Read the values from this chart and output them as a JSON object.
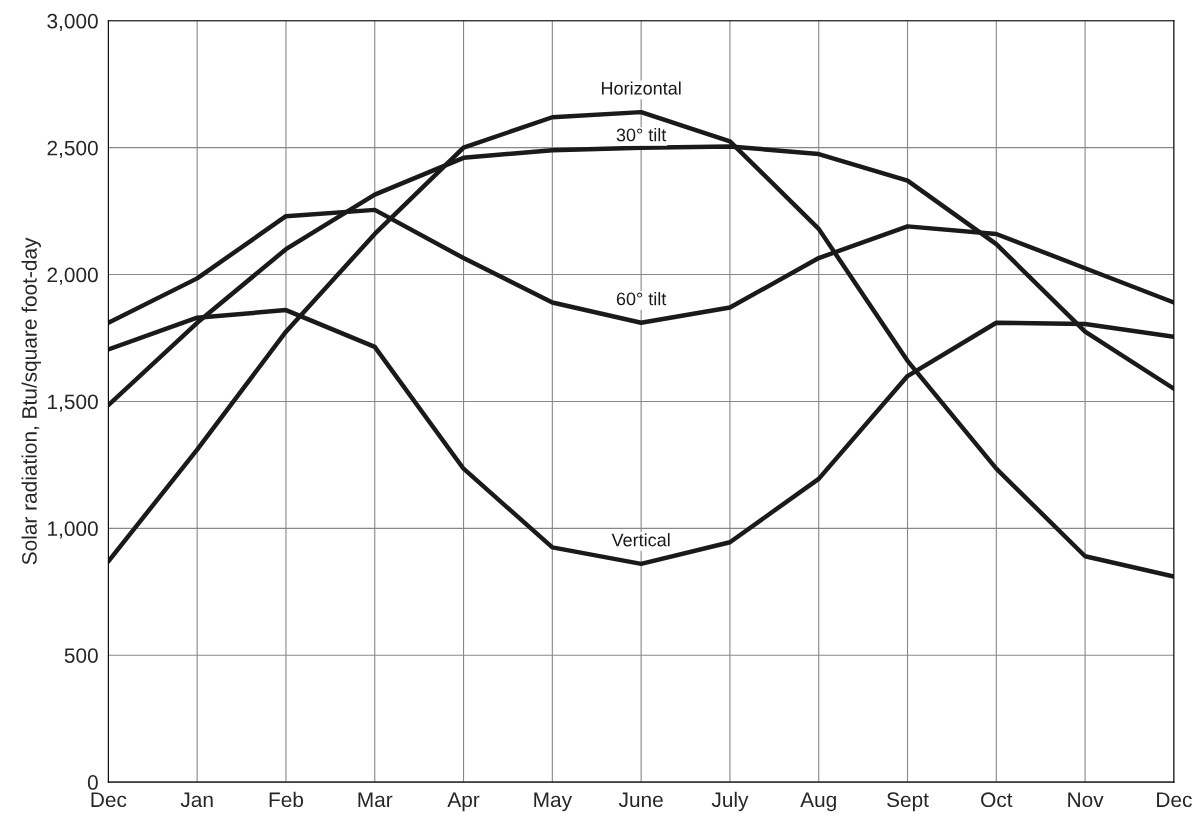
{
  "chart_data": {
    "type": "line",
    "ylabel": "Solar radiation, Btu/square foot-day",
    "categories": [
      "Dec",
      "Jan",
      "Feb",
      "Mar",
      "Apr",
      "May",
      "June",
      "July",
      "Aug",
      "Sept",
      "Oct",
      "Nov",
      "Dec"
    ],
    "series": [
      {
        "name": "Horizontal",
        "color": "#1a1a1a",
        "values": [
          870,
          1310,
          1775,
          2160,
          2500,
          2620,
          2640,
          2525,
          2180,
          1660,
          1235,
          890,
          810
        ]
      },
      {
        "name": "30° tilt",
        "color": "#1a1a1a",
        "values": [
          1485,
          1810,
          2100,
          2315,
          2460,
          2490,
          2500,
          2505,
          2475,
          2370,
          2120,
          1775,
          1550
        ]
      },
      {
        "name": "60° tilt",
        "color": "#1a1a1a",
        "values": [
          1810,
          1985,
          2230,
          2255,
          2065,
          1890,
          1810,
          1870,
          2065,
          2190,
          2160,
          2025,
          1890
        ]
      },
      {
        "name": "Vertical",
        "color": "#1a1a1a",
        "values": [
          1705,
          1830,
          1860,
          1715,
          1235,
          925,
          860,
          945,
          1195,
          1600,
          1810,
          1805,
          1755
        ]
      }
    ],
    "ylim": [
      0,
      3000
    ],
    "yticks": [
      {
        "value": 0,
        "label": "0"
      },
      {
        "value": 500,
        "label": "500"
      },
      {
        "value": 1000,
        "label": "1,000"
      },
      {
        "value": 1500,
        "label": "1,500"
      },
      {
        "value": 2000,
        "label": "2,000"
      },
      {
        "value": 2500,
        "label": "2,500"
      },
      {
        "value": 3000,
        "label": "3,000"
      }
    ],
    "grid": true,
    "line_style": "solid",
    "marker": "none"
  }
}
